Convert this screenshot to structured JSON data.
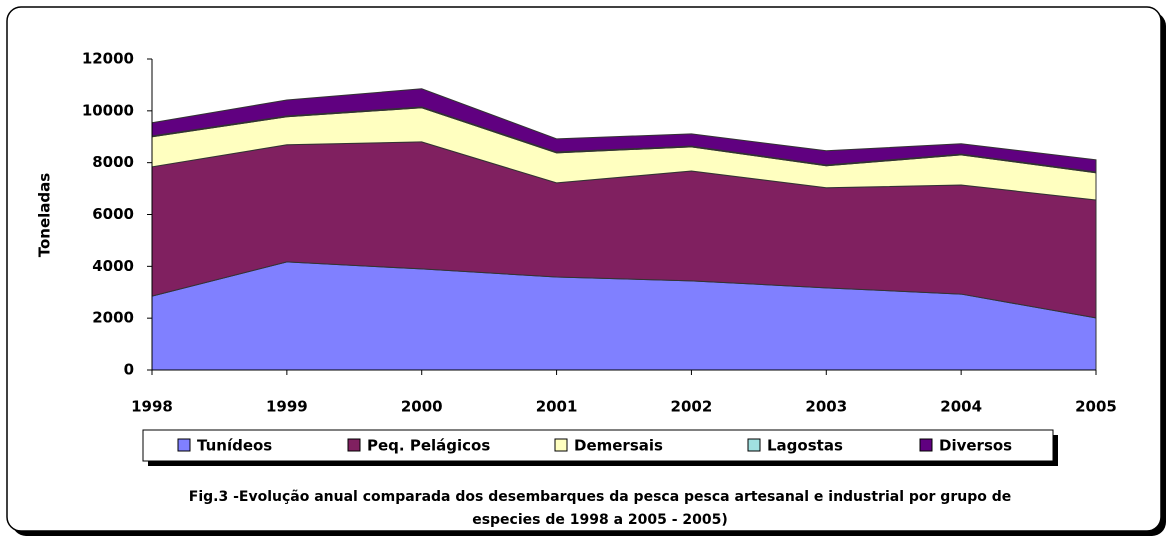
{
  "chart_data": {
    "type": "stacked_area",
    "caption": [
      "Fig.3 -Evolução anual comparada dos desembarques da pesca pesca artesanal e industrial por grupo de",
      "especies de 1998 a 2005 - 2005)"
    ],
    "y_label": "Toneladas",
    "categories": [
      "1998",
      "1999",
      "2000",
      "2001",
      "2002",
      "2003",
      "2004",
      "2005"
    ],
    "series": [
      {
        "name": "Tunídeos",
        "color": "#8080ff",
        "values": [
          2850,
          4170,
          3900,
          3590,
          3440,
          3170,
          2930,
          2010
        ]
      },
      {
        "name": "Peq. Pelágicos",
        "color": "#802060",
        "values": [
          4990,
          4520,
          4900,
          3630,
          4240,
          3860,
          4210,
          4550
        ]
      },
      {
        "name": "Demersais",
        "color": "#ffffc0",
        "values": [
          1160,
          1080,
          1320,
          1160,
          930,
          850,
          1160,
          1050
        ]
      },
      {
        "name": "Lagostas",
        "color": "#a0e0e0",
        "values": [
          30,
          30,
          30,
          30,
          30,
          30,
          30,
          30
        ]
      },
      {
        "name": "Diversos",
        "color": "#600080",
        "values": [
          510,
          620,
          700,
          510,
          470,
          550,
          400,
          470
        ]
      }
    ],
    "ylim": [
      0,
      12000
    ],
    "yticks": [
      0,
      2000,
      4000,
      6000,
      8000,
      10000,
      12000
    ],
    "legend": "bottom"
  }
}
